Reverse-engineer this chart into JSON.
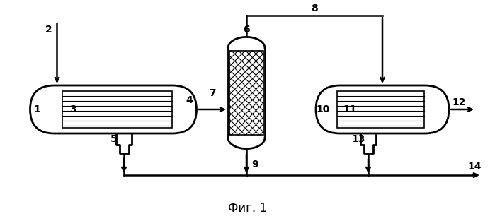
{
  "title": "Фиг. 1",
  "bg_color": "#ffffff",
  "line_color": "#000000",
  "fig_width": 6.99,
  "fig_height": 3.13,
  "dpi": 100
}
